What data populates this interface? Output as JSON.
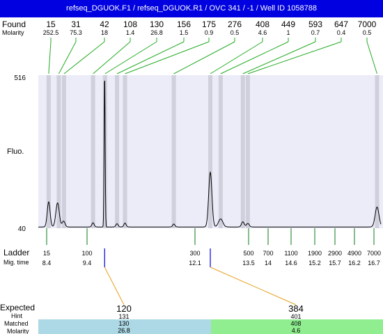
{
  "header": {
    "title": "refseq_DGUOK.F1 / refseq_DGUOK.R1 / OVC 341 / -1 / Well ID 1058788"
  },
  "labels": {
    "found": "Found",
    "molarity": "Molarity",
    "fluo": "Fluo.",
    "ladder": "Ladder",
    "mig_time": "Mig. time",
    "expected": "Expected",
    "hint": "Hint",
    "matched": "Matched",
    "molarity_bottom": "Molarity"
  },
  "colors": {
    "title_bg": "#0000e0",
    "plot_bg": "#ececf9",
    "band": "#cfd0dc",
    "found_line": "#22aa22",
    "ladder_line": "#0a7a1a",
    "connector": "#e6a020",
    "expected_marker": "#0000dd",
    "cell_blue": "#add8e6",
    "cell_green": "#90ee90"
  },
  "chart_data": {
    "type": "line",
    "ylim": [
      40,
      516
    ],
    "y_ticks": [
      "516",
      "40"
    ],
    "found": [
      {
        "size": "15",
        "molarity": "252.5",
        "mig": 8.45
      },
      {
        "size": "31",
        "molarity": "75.3",
        "mig": 8.7
      },
      {
        "size": "42",
        "molarity": "18",
        "mig": 8.83
      },
      {
        "size": "108",
        "molarity": "1.4",
        "mig": 9.55
      },
      {
        "size": "130",
        "molarity": "26.8",
        "mig": 9.85
      },
      {
        "size": "156",
        "molarity": "1.5",
        "mig": 10.15
      },
      {
        "size": "175",
        "molarity": "0.9",
        "mig": 10.35
      },
      {
        "size": "276",
        "molarity": "0.5",
        "mig": 11.57
      },
      {
        "size": "408",
        "molarity": "4.6",
        "mig": 12.5
      },
      {
        "size": "449",
        "molarity": "1",
        "mig": 12.77
      },
      {
        "size": "593",
        "molarity": "0.7",
        "mig": 13.35
      },
      {
        "size": "647",
        "molarity": "0.4",
        "mig": 13.48
      },
      {
        "size": "7000",
        "molarity": "0.5",
        "mig": 16.78
      }
    ],
    "ladder": [
      {
        "size": "15",
        "time": "8.4"
      },
      {
        "size": "100",
        "time": "9.4"
      },
      {
        "size": "300",
        "time": "12.1"
      },
      {
        "size": "500",
        "time": "13.5"
      },
      {
        "size": "700",
        "time": "14"
      },
      {
        "size": "1100",
        "time": "14.6"
      },
      {
        "size": "1900",
        "time": "15.2"
      },
      {
        "size": "2900",
        "time": "15.7"
      },
      {
        "size": "4900",
        "time": "16.2"
      },
      {
        "size": "7000",
        "time": "16.7"
      }
    ],
    "mig_range": [
      8.4,
      16.7
    ],
    "bands": [
      8.45,
      8.7,
      8.83,
      9.55,
      9.85,
      10.15,
      10.35,
      11.57,
      12.5,
      12.77,
      13.35,
      13.48,
      16.78
    ],
    "peaks": [
      {
        "mig": 8.45,
        "height": 78,
        "width": 0.05
      },
      {
        "mig": 8.67,
        "height": 75,
        "width": 0.06
      },
      {
        "mig": 8.82,
        "height": 18,
        "width": 0.05
      },
      {
        "mig": 9.55,
        "height": 13,
        "width": 0.04
      },
      {
        "mig": 9.84,
        "height": 480,
        "width": 0.018
      },
      {
        "mig": 10.15,
        "height": 10,
        "width": 0.04
      },
      {
        "mig": 10.35,
        "height": 12,
        "width": 0.04
      },
      {
        "mig": 11.57,
        "height": 9,
        "width": 0.04
      },
      {
        "mig": 12.5,
        "height": 170,
        "width": 0.06
      },
      {
        "mig": 12.77,
        "height": 25,
        "width": 0.08
      },
      {
        "mig": 13.35,
        "height": 16,
        "width": 0.05
      },
      {
        "mig": 13.48,
        "height": 11,
        "width": 0.05
      },
      {
        "mig": 16.78,
        "height": 62,
        "width": 0.07
      }
    ],
    "expected": [
      {
        "size": "120",
        "hint": "131",
        "matched": "130",
        "molarity": "26.8",
        "mig": 9.84
      },
      {
        "size": "384",
        "hint": "401",
        "matched": "408",
        "molarity": "4.6",
        "mig": 12.5
      }
    ]
  }
}
